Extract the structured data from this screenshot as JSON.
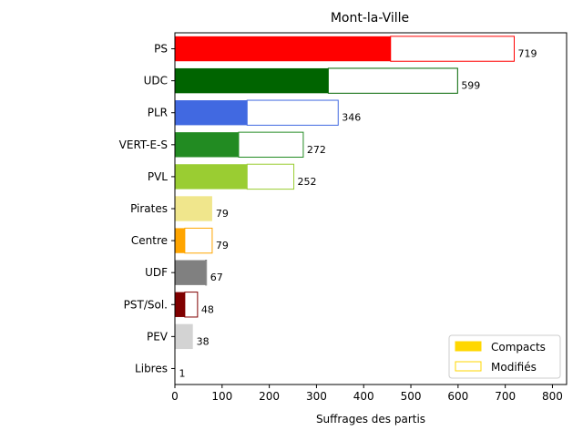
{
  "chart_data": {
    "type": "bar",
    "orientation": "horizontal",
    "stacked": true,
    "title": "Mont-la-Ville",
    "xlabel": "Suffrages des partis",
    "ylabel": "",
    "xlim": [
      0,
      830
    ],
    "xticks": [
      0,
      100,
      200,
      300,
      400,
      500,
      600,
      700,
      800
    ],
    "grid": false,
    "legend_position": "bottom-right",
    "categories": [
      "PS",
      "UDC",
      "PLR",
      "VERT-E-S",
      "PVL",
      "Pirates",
      "Centre",
      "UDF",
      "PST/Sol.",
      "PEV",
      "Libres"
    ],
    "colors": [
      "#ff0000",
      "#006400",
      "#4169e1",
      "#228b22",
      "#9acd32",
      "#f0e68c",
      "#ffa500",
      "#808080",
      "#800000",
      "#d3d3d3",
      "#ffd700"
    ],
    "series": [
      {
        "name": "Compacts",
        "legend_color": "#ffd700",
        "values": [
          457,
          325,
          153,
          135,
          153,
          79,
          21,
          65,
          21,
          38,
          1
        ]
      },
      {
        "name": "Modifiés",
        "legend_color": "#ffd700",
        "values": [
          262,
          274,
          193,
          137,
          99,
          0,
          58,
          2,
          27,
          0,
          0
        ]
      }
    ],
    "totals": [
      719,
      599,
      346,
      272,
      252,
      79,
      79,
      67,
      48,
      38,
      1
    ]
  }
}
